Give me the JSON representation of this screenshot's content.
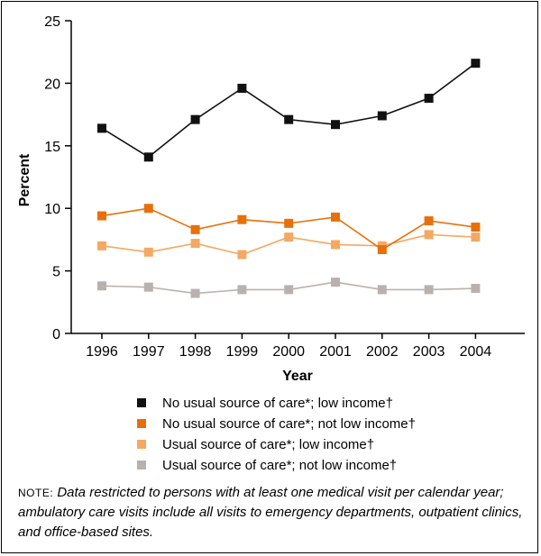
{
  "chart_data": {
    "type": "line",
    "categories": [
      "1996",
      "1997",
      "1998",
      "1999",
      "2000",
      "2001",
      "2002",
      "2003",
      "2004"
    ],
    "xlabel": "Year",
    "ylabel": "Percent",
    "ylim": [
      0,
      25
    ],
    "yticks": [
      "0",
      "5",
      "10",
      "15",
      "20",
      "25"
    ],
    "grid": false,
    "legend_position": "bottom",
    "series": [
      {
        "name": "No usual source of care*; low income†",
        "color": "#111111",
        "values": [
          16.4,
          14.1,
          17.1,
          19.6,
          17.1,
          16.7,
          17.4,
          18.8,
          21.6
        ]
      },
      {
        "name": "No usual source of care*; not low income†",
        "color": "#e8700a",
        "values": [
          9.4,
          10.0,
          8.3,
          9.1,
          8.8,
          9.3,
          6.7,
          9.0,
          8.5
        ]
      },
      {
        "name": "Usual source of care*; low income†",
        "color": "#f5a862",
        "values": [
          7.0,
          6.5,
          7.2,
          6.3,
          7.7,
          7.1,
          7.0,
          7.9,
          7.7
        ]
      },
      {
        "name": "Usual source of care*; not low income†",
        "color": "#b9b1ad",
        "values": [
          3.8,
          3.7,
          3.2,
          3.5,
          3.5,
          4.1,
          3.5,
          3.5,
          3.6
        ]
      }
    ]
  },
  "note": {
    "prefix": "NOTE:",
    "text": "Data restricted to persons with at least one medical visit per calendar year; ambulatory care visits include all visits to emergency departments, outpatient clinics, and office-based sites."
  }
}
